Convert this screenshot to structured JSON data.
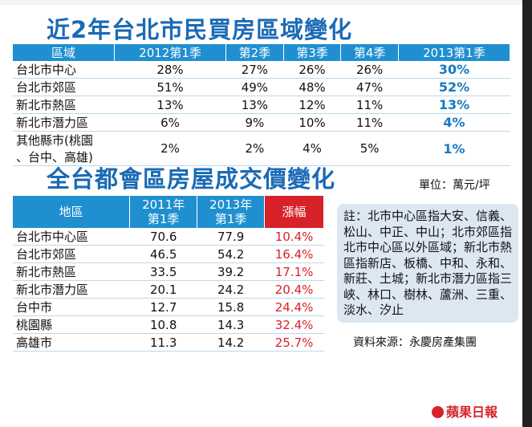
{
  "title1": "近2年台北市民買房區域變化",
  "table1": {
    "headers": [
      "區域",
      "2012第1季",
      "第2季",
      "第3季",
      "第4季",
      "2013第1季"
    ],
    "rows": [
      [
        "台北市中心",
        "28%",
        "27%",
        "26%",
        "26%",
        "30%"
      ],
      [
        "台北市郊區",
        "51%",
        "49%",
        "48%",
        "47%",
        "52%"
      ],
      [
        "新北市熱區",
        "13%",
        "13%",
        "12%",
        "11%",
        "13%"
      ],
      [
        "新北市潛力區",
        "6%",
        "9%",
        "10%",
        "11%",
        "4%"
      ],
      [
        "其他縣市(桃園\n、台中、高雄)",
        "2%",
        "2%",
        "4%",
        "5%",
        "1%"
      ]
    ]
  },
  "title2": "全台都會區房屋成交價變化",
  "unit": "單位：萬元/坪",
  "table2": {
    "headers": [
      "地區",
      "2011年\n第1季",
      "2013年\n第1季",
      "漲幅"
    ],
    "rows": [
      [
        "台北市中心區",
        "70.6",
        "77.9",
        "10.4%"
      ],
      [
        "台北市郊區",
        "46.5",
        "54.2",
        "16.4%"
      ],
      [
        "新北市熱區",
        "33.5",
        "39.2",
        "17.1%"
      ],
      [
        "新北市潛力區",
        "20.1",
        "24.2",
        "20.4%"
      ],
      [
        "台中市",
        "12.7",
        "15.8",
        "24.4%"
      ],
      [
        "桃園縣",
        "10.8",
        "14.3",
        "32.4%"
      ],
      [
        "高雄市",
        "11.3",
        "14.2",
        "25.7%"
      ]
    ]
  },
  "note": "註：北市中心區指大安、信義、松山、中正、中山；北市郊區指北市中心區以外區域；新北市熱區指新店、板橋、中和、永和、新莊、土城；新北市潛力區指三峽、林口、樹林、蘆洲、三重、淡水、汐止",
  "source": "資料來源：永慶房產集團",
  "logo": "蘋果日報",
  "colors": {
    "header_blue": "#1f8fd0",
    "title_blue": "#1a6ab5",
    "rise_red": "#d8222a"
  }
}
